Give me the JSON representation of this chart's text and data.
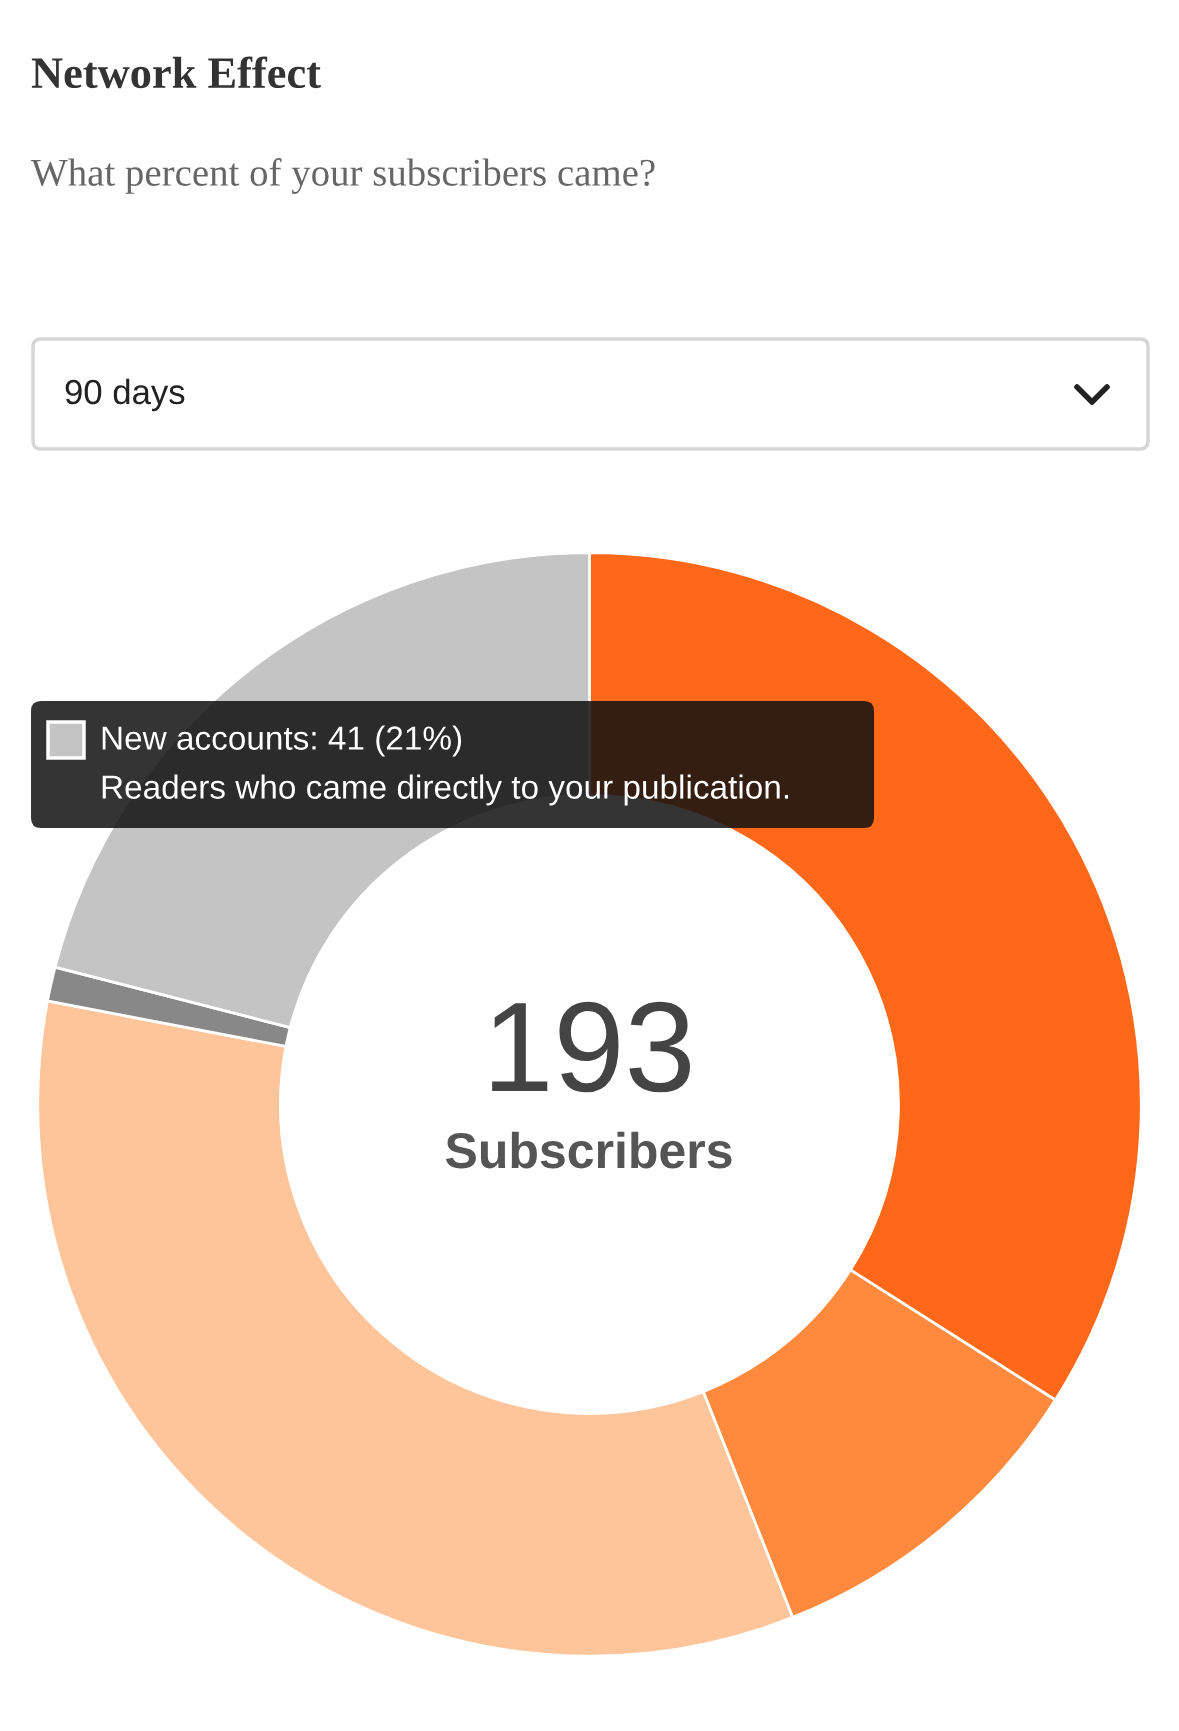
{
  "chart_data": {
    "type": "donut",
    "title": "Network Effect",
    "subtitle": "What percent of your subscribers came?",
    "categories": [
      null,
      null,
      null,
      null,
      null
    ],
    "values": [
      34,
      10,
      34,
      1,
      21
    ],
    "colors": [
      "#ff6719",
      "#ff8a3d",
      "#fec49a",
      "#888888",
      "#c4c4c4"
    ],
    "annotations": [
      "90 days",
      "New accounts: 41 (21%)",
      "Readers who came directly to your publication.",
      "193",
      "Subscribers"
    ]
  }
}
